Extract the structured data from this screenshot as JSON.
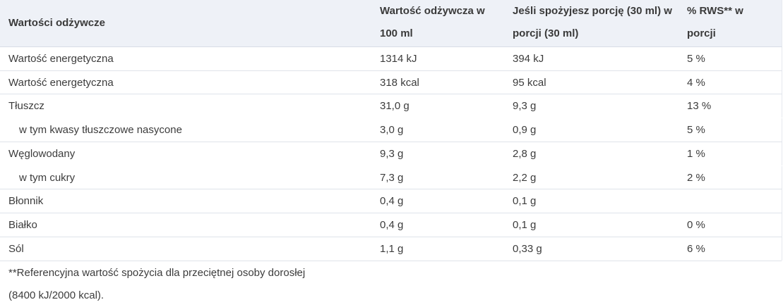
{
  "table": {
    "header": [
      "Wartości odżywcze",
      "Wartość odżywcza w 100 ml",
      "Jeśli spożyjesz porcję (30 ml) w porcji (30 ml)",
      "% RWS** w porcji"
    ],
    "rows": [
      {
        "cells": [
          "Wartość energetyczna",
          "1314 kJ",
          "394 kJ",
          "5 %"
        ]
      },
      {
        "cells": [
          "Wartość energetyczna",
          "318 kcal",
          "95 kcal",
          "4 %"
        ]
      },
      {
        "cells": [
          "Tłuszcz",
          "31,0 g",
          "9,3 g",
          "13 %"
        ]
      },
      {
        "cells": [
          "w tym kwasy tłuszczowe nasycone",
          "3,0 g",
          "0,9 g",
          "5 %"
        ],
        "indent": true
      },
      {
        "cells": [
          "Węglowodany",
          "9,3 g",
          "2,8 g",
          "1 %"
        ]
      },
      {
        "cells": [
          "w tym cukry",
          "7,3 g",
          "2,2 g",
          "2 %"
        ],
        "indent": true
      },
      {
        "cells": [
          "Błonnik",
          "0,4 g",
          "0,1 g",
          null
        ]
      },
      {
        "cells": [
          "Białko",
          "0,4 g",
          "0,1 g",
          "0 %"
        ]
      },
      {
        "cells": [
          "Sól",
          "1,1 g",
          "0,33 g",
          "6 %"
        ]
      }
    ],
    "footnote": [
      "**Referencyjna wartość spożycia dla przeciętnej osoby dorosłej",
      "(8400 kJ/2000 kcal)."
    ]
  }
}
